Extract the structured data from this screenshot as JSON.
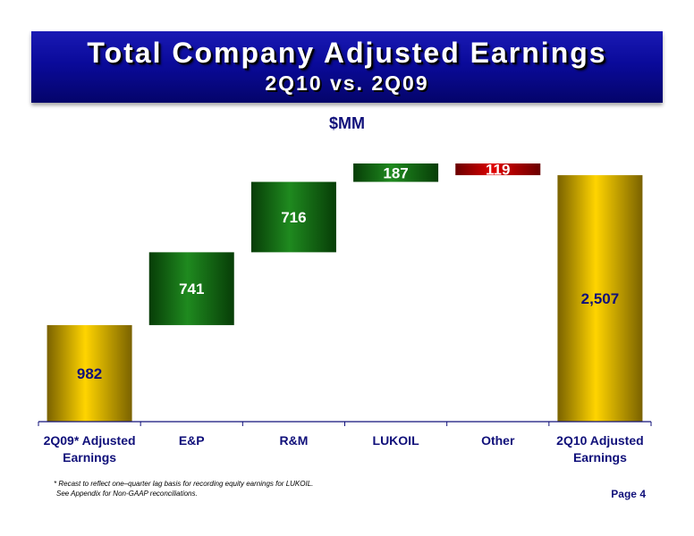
{
  "title": "Total Company Adjusted Earnings",
  "subtitle": "2Q10 vs. 2Q09",
  "unit_label": "$MM",
  "footnote": {
    "line1": "* Recast to reflect one–quarter lag basis for recording equity earnings for LUKOIL.",
    "line2": "See Appendix for Non-GAAP reconciliations."
  },
  "page_label": "Page 4",
  "colors": {
    "banner": "#0a0a9a",
    "total": "#e8c000",
    "increase": "#0a6a0a",
    "decrease": "#c40000",
    "text_dark": "#10107a"
  },
  "chart_data": {
    "type": "bar",
    "subtype": "waterfall",
    "categories": [
      [
        "2Q09* Adjusted",
        "Earnings"
      ],
      [
        "E&P"
      ],
      [
        "R&M"
      ],
      [
        "LUKOIL"
      ],
      [
        "Other"
      ],
      [
        "2Q10 Adjusted",
        "Earnings"
      ]
    ],
    "values": [
      982,
      741,
      716,
      187,
      -119,
      2507
    ],
    "value_labels": [
      "982",
      "741",
      "716",
      "187",
      "119",
      "2,507"
    ],
    "kinds": [
      "total",
      "increase",
      "increase",
      "increase",
      "decrease",
      "total"
    ],
    "ylim": [
      0,
      2626
    ],
    "grid": false,
    "legend": false
  }
}
